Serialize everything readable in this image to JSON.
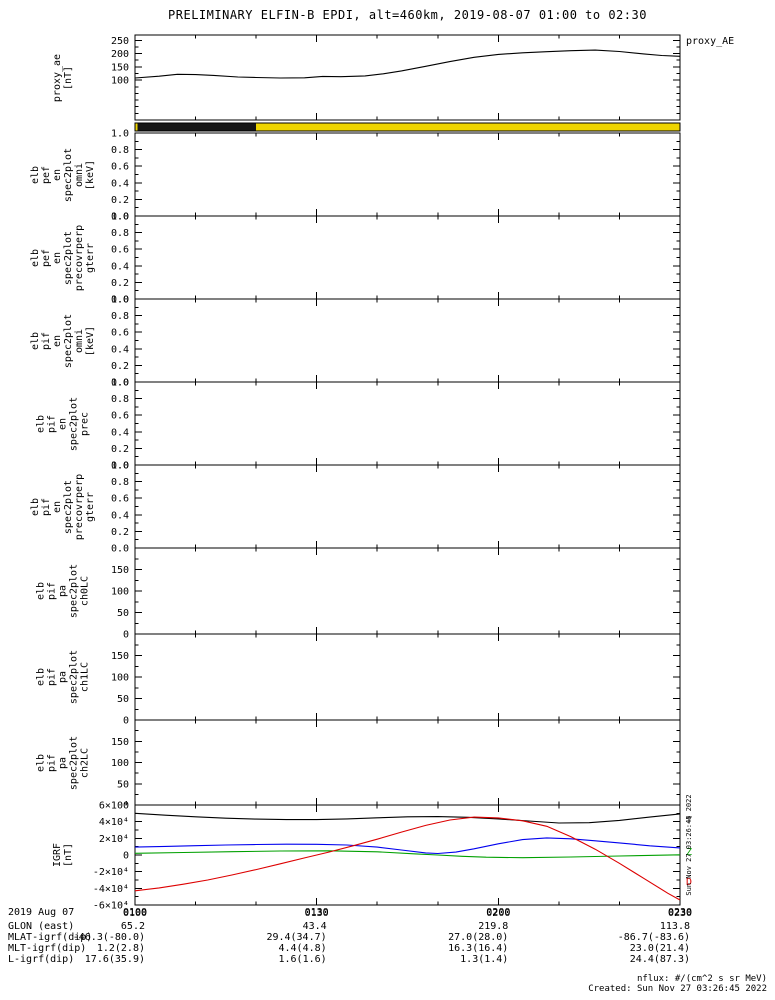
{
  "title": "PRELIMINARY ELFIN-B EPDI, alt=460km, 2019-08-07 01:00 to 02:30",
  "x_axis": {
    "start_min": 0,
    "end_min": 90,
    "minor_step": 10,
    "ticks": [
      {
        "t": 0,
        "label": "0100"
      },
      {
        "t": 30,
        "label": "0130"
      },
      {
        "t": 60,
        "label": "0200"
      },
      {
        "t": 90,
        "label": "0230"
      }
    ]
  },
  "chart_data": [
    {
      "id": "proxy_ae",
      "type": "line",
      "ylabel_lines": [
        "proxy_ae",
        "[nT]"
      ],
      "right_label": "proxy_AE",
      "ylim": [
        -50,
        270
      ],
      "yticks": [
        100,
        150,
        200,
        250
      ],
      "ytick_labels": [
        "100",
        "150",
        "200",
        "250"
      ],
      "yminor_step": 25,
      "series": [
        {
          "name": "proxy_AE",
          "color": "#000000",
          "x": [
            0,
            4,
            7,
            10,
            13,
            17,
            20,
            24,
            28,
            31,
            34,
            38,
            41,
            44,
            48,
            52,
            56,
            60,
            64,
            68,
            72,
            76,
            80,
            84,
            87,
            90
          ],
          "y": [
            108,
            115,
            122,
            121,
            118,
            112,
            110,
            108,
            109,
            114,
            113,
            116,
            124,
            135,
            152,
            170,
            186,
            197,
            203,
            207,
            211,
            213,
            208,
            199,
            193,
            190
          ]
        }
      ]
    },
    {
      "id": "pef_en_omni",
      "type": "spectrogram-empty",
      "ylabel_lines": [
        "elb",
        "pef",
        "en",
        "spec2plot",
        "omni",
        "[keV]"
      ],
      "ylim": [
        0,
        1
      ],
      "yticks": [
        0,
        0.2,
        0.4,
        0.6,
        0.8,
        1.0
      ],
      "ytick_labels": [
        "0.0",
        "0.2",
        "0.4",
        "0.6",
        "0.8",
        "1.0"
      ],
      "yminor_step": 0.1,
      "series": [],
      "flag_bar": {
        "background_color": "#eed500",
        "segments": [
          {
            "t_start": 0.4,
            "t_end": 20,
            "color": "#151515"
          }
        ]
      }
    },
    {
      "id": "pef_en_precovrperp_gterr",
      "type": "spectrogram-empty",
      "ylabel_lines": [
        "elb",
        "pef",
        "en",
        "spec2plot",
        "precovrperp",
        "gterr"
      ],
      "ylim": [
        0,
        1
      ],
      "yticks": [
        0,
        0.2,
        0.4,
        0.6,
        0.8,
        1.0
      ],
      "ytick_labels": [
        "0.0",
        "0.2",
        "0.4",
        "0.6",
        "0.8",
        "1.0"
      ],
      "yminor_step": 0.1,
      "series": []
    },
    {
      "id": "pif_en_omni",
      "type": "spectrogram-empty",
      "ylabel_lines": [
        "elb",
        "pif",
        "en",
        "spec2plot",
        "omni",
        "[keV]"
      ],
      "ylim": [
        0,
        1
      ],
      "yticks": [
        0,
        0.2,
        0.4,
        0.6,
        0.8,
        1.0
      ],
      "ytick_labels": [
        "0.0",
        "0.2",
        "0.4",
        "0.6",
        "0.8",
        "1.0"
      ],
      "yminor_step": 0.1,
      "series": []
    },
    {
      "id": "pif_en_prec",
      "type": "spectrogram-empty",
      "ylabel_lines": [
        "elb",
        "pif",
        "en",
        "spec2plot",
        "prec"
      ],
      "ylim": [
        0,
        1
      ],
      "yticks": [
        0,
        0.2,
        0.4,
        0.6,
        0.8,
        1.0
      ],
      "ytick_labels": [
        "0.0",
        "0.2",
        "0.4",
        "0.6",
        "0.8",
        "1.0"
      ],
      "yminor_step": 0.1,
      "series": []
    },
    {
      "id": "pif_en_precovrperp_gterr",
      "type": "spectrogram-empty",
      "ylabel_lines": [
        "elb",
        "pif",
        "en",
        "spec2plot",
        "precovrperp",
        "gterr"
      ],
      "ylim": [
        0,
        1
      ],
      "yticks": [
        0,
        0.2,
        0.4,
        0.6,
        0.8,
        1.0
      ],
      "ytick_labels": [
        "0.0",
        "0.2",
        "0.4",
        "0.6",
        "0.8",
        "1.0"
      ],
      "yminor_step": 0.1,
      "series": []
    },
    {
      "id": "pif_pa_ch0LC",
      "type": "spectrogram-empty",
      "ylabel_lines": [
        "elb",
        "pif",
        "pa",
        "spec2plot",
        "ch0LC"
      ],
      "ylim": [
        0,
        200
      ],
      "yticks": [
        0,
        50,
        100,
        150
      ],
      "ytick_labels": [
        "0",
        "50",
        "100",
        "150"
      ],
      "yminor_step": 25,
      "series": []
    },
    {
      "id": "pif_pa_ch1LC",
      "type": "spectrogram-empty",
      "ylabel_lines": [
        "elb",
        "pif",
        "pa",
        "spec2plot",
        "ch1LC"
      ],
      "ylim": [
        0,
        200
      ],
      "yticks": [
        0,
        50,
        100,
        150
      ],
      "ytick_labels": [
        "0",
        "50",
        "100",
        "150"
      ],
      "yminor_step": 25,
      "series": []
    },
    {
      "id": "pif_pa_ch2LC",
      "type": "spectrogram-empty",
      "ylabel_lines": [
        "elb",
        "pif",
        "pa",
        "spec2plot",
        "ch2LC"
      ],
      "ylim": [
        0,
        200
      ],
      "yticks": [
        0,
        50,
        100,
        150
      ],
      "ytick_labels": [
        "0",
        "50",
        "100",
        "150"
      ],
      "yminor_step": 25,
      "series": []
    },
    {
      "id": "igrf",
      "type": "line",
      "ylabel_lines": [
        "IGRF",
        "[nT]"
      ],
      "ylim": [
        -60000,
        60000
      ],
      "yticks": [
        -60000,
        -40000,
        -20000,
        0,
        20000,
        40000,
        60000
      ],
      "ytick_labels": [
        "-6×10⁴",
        "-4×10⁴",
        "-2×10⁴",
        "0",
        "2×10⁴",
        "4×10⁴",
        "6×10⁴"
      ],
      "yminor_step": 10000,
      "series": [
        {
          "name": "T",
          "color": "#000000",
          "x": [
            0,
            5,
            10,
            15,
            20,
            25,
            30,
            35,
            40,
            45,
            50,
            55,
            60,
            65,
            70,
            75,
            80,
            85,
            90
          ],
          "y": [
            50000,
            47800,
            45800,
            44200,
            43100,
            42500,
            42500,
            43300,
            44700,
            45900,
            46100,
            45200,
            43300,
            40800,
            38400,
            38800,
            41500,
            45500,
            49300
          ]
        },
        {
          "name": "N",
          "color": "#0000ee",
          "x": [
            0,
            5,
            10,
            15,
            20,
            25,
            30,
            35,
            40,
            44,
            48,
            50,
            53,
            56,
            60,
            64,
            68,
            72,
            76,
            80,
            85,
            90
          ],
          "y": [
            9500,
            10300,
            11200,
            12000,
            12600,
            13000,
            12900,
            12000,
            9500,
            6000,
            2500,
            1800,
            3500,
            7500,
            13500,
            18500,
            20500,
            19500,
            17000,
            14500,
            11000,
            8500
          ]
        },
        {
          "name": "Z",
          "color": "#00a000",
          "x": [
            0,
            8,
            16,
            24,
            32,
            40,
            46,
            50,
            54,
            58,
            64,
            72,
            80,
            90
          ],
          "y": [
            2000,
            3000,
            4000,
            4800,
            5000,
            3800,
            1500,
            0,
            -1500,
            -2600,
            -3200,
            -2400,
            -1200,
            200
          ]
        },
        {
          "name": "D",
          "color": "#dd0000",
          "x": [
            0,
            4,
            8,
            12,
            16,
            20,
            24,
            28,
            32,
            36,
            40,
            44,
            48,
            52,
            56,
            60,
            64,
            68,
            72,
            76,
            80,
            84,
            88,
            90
          ],
          "y": [
            -43000,
            -39500,
            -35000,
            -30000,
            -24000,
            -17500,
            -10500,
            -3500,
            3500,
            11000,
            19000,
            27500,
            35500,
            42000,
            45500,
            44500,
            41000,
            34500,
            22000,
            7000,
            -10000,
            -28000,
            -46000,
            -54000
          ]
        }
      ],
      "line_labels": [
        {
          "text": "T",
          "color": "#000000",
          "value": 42000
        },
        {
          "text": "Z",
          "color": "#00a000",
          "value": 4000
        },
        {
          "text": "D",
          "color": "#dd0000",
          "value": -32000
        }
      ]
    }
  ],
  "footer": {
    "time_row": {
      "label": "2019 Aug 07",
      "values": [
        "0100",
        "0130",
        "0200",
        "0230"
      ]
    },
    "rows": [
      {
        "label": "GLON (east)",
        "values": [
          "65.2",
          "43.4",
          "219.8",
          "113.8"
        ]
      },
      {
        "label": "MLAT-igrf(dip)",
        "values": [
          "-46.3(-80.0)",
          "29.4(34.7)",
          "27.0(28.0)",
          "-86.7(-83.6)"
        ]
      },
      {
        "label": "MLT-igrf(dip)",
        "values": [
          "1.2(2.8)",
          "4.4(4.8)",
          "16.3(16.4)",
          "23.0(21.4)"
        ]
      },
      {
        "label": "L-igrf(dip)",
        "values": [
          "17.6(35.9)",
          "1.6(1.6)",
          "1.3(1.4)",
          "24.4(87.3)"
        ]
      }
    ],
    "nflux_note": "nflux: #/(cm^2 s sr MeV)",
    "created": "Created: Sun Nov 27 03:26:45 2022",
    "side_stamp": "Sun Nov 27 03:26:45 2022"
  }
}
